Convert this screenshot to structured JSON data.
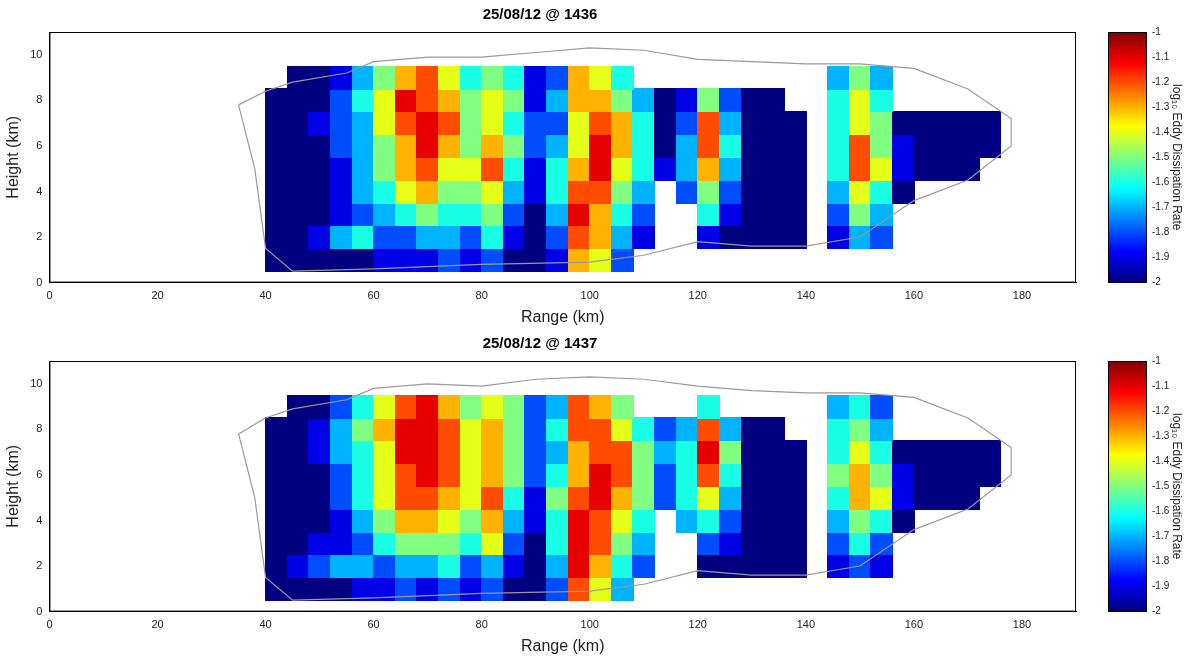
{
  "chart_data": [
    {
      "type": "heatmap",
      "title": "25/08/12 @ 1436",
      "x_label": "Range (km)",
      "y_label": "Height (km)",
      "xlim": [
        0,
        190
      ],
      "xticks": [
        0,
        20,
        40,
        60,
        80,
        100,
        120,
        140,
        160,
        180
      ],
      "ylim": [
        0,
        11
      ],
      "yticks": [
        0,
        2,
        4,
        6,
        8,
        10
      ],
      "grid": false,
      "x": [
        42,
        46,
        50,
        54,
        58,
        62,
        66,
        70,
        74,
        78,
        82,
        86,
        90,
        94,
        98,
        102,
        106,
        110,
        114,
        118,
        122,
        126,
        130,
        134,
        138,
        142,
        146,
        150,
        154,
        158,
        162,
        166,
        170,
        174
      ],
      "y": [
        1,
        2,
        3,
        4,
        5,
        6,
        7,
        8,
        9
      ],
      "cells": [
        [
          -2,
          -2,
          -2,
          -2,
          -2,
          -1.9,
          -1.9,
          -1.9,
          -1.8,
          -1.9,
          -1.8,
          -2,
          -2,
          -1.9,
          -1.3,
          -1.4,
          -1.8,
          null,
          null,
          null,
          null,
          null,
          null,
          null,
          null,
          null,
          null,
          null,
          null,
          null,
          null,
          null,
          null,
          null
        ],
        [
          -2,
          -2,
          -1.9,
          -1.7,
          -1.6,
          -1.8,
          -1.8,
          -1.7,
          -1.7,
          -1.8,
          -1.6,
          -1.9,
          -2,
          -1.8,
          -1.2,
          -1.3,
          -1.7,
          -1.9,
          null,
          null,
          -1.9,
          -2,
          -2,
          -2,
          -2,
          null,
          -1.9,
          -1.7,
          -1.8,
          null,
          null,
          null,
          null,
          null
        ],
        [
          -2,
          -2,
          -2,
          -1.9,
          -1.8,
          -1.7,
          -1.6,
          -1.5,
          -1.6,
          -1.6,
          -1.5,
          -1.8,
          -2,
          -1.7,
          -1.1,
          -1.3,
          -1.6,
          -1.8,
          null,
          null,
          -1.6,
          -1.9,
          -2,
          -2,
          -2,
          null,
          -1.8,
          -1.5,
          -1.7,
          null,
          null,
          null,
          null,
          null
        ],
        [
          -2,
          -2,
          -2,
          -1.9,
          -1.7,
          -1.6,
          -1.4,
          -1.3,
          -1.5,
          -1.5,
          -1.4,
          -1.7,
          -1.9,
          -1.6,
          -1.2,
          -1.2,
          -1.5,
          -1.7,
          null,
          -1.8,
          -1.5,
          -1.8,
          -2,
          -2,
          -2,
          null,
          -1.7,
          -1.4,
          -1.6,
          -2,
          null,
          null,
          null,
          null
        ],
        [
          -2,
          -2,
          -2,
          -1.9,
          -1.7,
          -1.5,
          -1.3,
          -1.2,
          -1.4,
          -1.4,
          -1.2,
          -1.6,
          -1.9,
          -1.6,
          -1.3,
          -1.1,
          -1.4,
          -1.6,
          -1.9,
          -1.7,
          -1.3,
          -1.7,
          -2,
          -2,
          -2,
          null,
          -1.6,
          -1.2,
          -1.4,
          -1.9,
          -2,
          -2,
          -2,
          null
        ],
        [
          -2,
          -2,
          -2,
          -1.8,
          -1.7,
          -1.5,
          -1.3,
          -1.1,
          -1.3,
          -1.5,
          -1.3,
          -1.5,
          -1.8,
          -1.7,
          -1.4,
          -1.1,
          -1.3,
          -1.6,
          -2,
          -1.7,
          -1.2,
          -1.6,
          -2,
          -2,
          -2,
          null,
          -1.6,
          -1.2,
          -1.5,
          -1.9,
          -2,
          -2,
          -2,
          -2
        ],
        [
          -2,
          -2,
          -1.9,
          -1.8,
          -1.7,
          -1.4,
          -1.2,
          -1.1,
          -1.2,
          -1.5,
          -1.4,
          -1.6,
          -1.8,
          -1.8,
          -1.4,
          -1.2,
          -1.3,
          -1.6,
          -2,
          -1.8,
          -1.2,
          -1.7,
          -2,
          -2,
          -2,
          null,
          -1.6,
          -1.4,
          -1.5,
          -2,
          -2,
          -2,
          -2,
          -2
        ],
        [
          -2,
          -2,
          -2,
          -1.8,
          -1.6,
          -1.4,
          -1.1,
          -1.2,
          -1.3,
          -1.5,
          -1.4,
          -1.5,
          -1.9,
          -1.7,
          -1.3,
          -1.3,
          -1.5,
          -1.7,
          -2,
          -1.9,
          -1.5,
          -1.8,
          -2,
          -2,
          null,
          null,
          -1.6,
          -1.4,
          -1.6,
          null,
          null,
          null,
          null,
          null
        ],
        [
          null,
          -2,
          -2,
          -1.9,
          -1.7,
          -1.5,
          -1.3,
          -1.2,
          -1.4,
          -1.6,
          -1.5,
          -1.6,
          -1.9,
          -1.8,
          -1.3,
          -1.4,
          -1.6,
          null,
          null,
          null,
          null,
          null,
          null,
          null,
          null,
          null,
          -1.7,
          -1.5,
          -1.7,
          null,
          null,
          null,
          null,
          null
        ]
      ],
      "outline": {
        "x": [
          35,
          40,
          45,
          55,
          60,
          70,
          80,
          90,
          100,
          110,
          120,
          130,
          140,
          150,
          160,
          170,
          178,
          178,
          170,
          160,
          150,
          140,
          130,
          120,
          110,
          100,
          80,
          60,
          45,
          40,
          38,
          35
        ],
        "y": [
          7.8,
          8.4,
          8.8,
          9.2,
          9.7,
          9.9,
          9.9,
          10.1,
          10.3,
          10.2,
          9.8,
          9.7,
          9.6,
          9.6,
          9.4,
          8.5,
          7.2,
          6,
          4.5,
          3.6,
          2,
          1.6,
          1.6,
          1.8,
          1.2,
          0.9,
          0.8,
          0.6,
          0.5,
          1.5,
          5,
          7.8
        ]
      },
      "colorbar": {
        "label": "log₁₀ Eddy Dissipation Rate",
        "range": [
          -2,
          -1
        ],
        "ticks": [
          -1,
          -1.1,
          -1.2,
          -1.3,
          -1.4,
          -1.5,
          -1.6,
          -1.7,
          -1.8,
          -1.9,
          -2
        ]
      }
    },
    {
      "type": "heatmap",
      "title": "25/08/12 @ 1437",
      "x_label": "Range (km)",
      "y_label": "Height (km)",
      "xlim": [
        0,
        190
      ],
      "xticks": [
        0,
        20,
        40,
        60,
        80,
        100,
        120,
        140,
        160,
        180
      ],
      "ylim": [
        0,
        11
      ],
      "yticks": [
        0,
        2,
        4,
        6,
        8,
        10
      ],
      "grid": false,
      "x": [
        42,
        46,
        50,
        54,
        58,
        62,
        66,
        70,
        74,
        78,
        82,
        86,
        90,
        94,
        98,
        102,
        106,
        110,
        114,
        118,
        122,
        126,
        130,
        134,
        138,
        142,
        146,
        150,
        154,
        158,
        162,
        166,
        170,
        174
      ],
      "y": [
        1,
        2,
        3,
        4,
        5,
        6,
        7,
        8,
        9
      ],
      "cells": [
        [
          -2,
          -2,
          -2,
          -2,
          -1.9,
          -1.9,
          -1.8,
          -1.9,
          -1.8,
          -1.9,
          -1.8,
          -2,
          -2,
          -1.8,
          -1.2,
          -1.4,
          -1.7,
          null,
          null,
          null,
          null,
          null,
          null,
          null,
          null,
          null,
          null,
          null,
          null,
          null,
          null,
          null,
          null,
          null
        ],
        [
          -2,
          -1.9,
          -1.8,
          -1.7,
          -1.7,
          -1.8,
          -1.7,
          -1.7,
          -1.6,
          -1.8,
          -1.7,
          -1.9,
          -2,
          -1.7,
          -1.1,
          -1.3,
          -1.6,
          -1.8,
          null,
          null,
          -2,
          -2,
          -2,
          -2,
          -2,
          null,
          -1.9,
          -1.8,
          -1.9,
          null,
          null,
          null,
          null,
          null
        ],
        [
          -2,
          -2,
          -1.9,
          -1.9,
          -1.8,
          -1.6,
          -1.5,
          -1.5,
          -1.5,
          -1.6,
          -1.4,
          -1.8,
          -2,
          -1.6,
          -1.1,
          -1.2,
          -1.5,
          -1.7,
          null,
          null,
          -1.8,
          -1.9,
          -2,
          -2,
          -2,
          null,
          -1.8,
          -1.6,
          -1.8,
          null,
          null,
          null,
          null,
          null
        ],
        [
          -2,
          -2,
          -2,
          -1.9,
          -1.7,
          -1.5,
          -1.3,
          -1.3,
          -1.4,
          -1.5,
          -1.3,
          -1.7,
          -1.9,
          -1.6,
          -1.1,
          -1.2,
          -1.4,
          -1.6,
          null,
          -1.7,
          -1.6,
          -1.8,
          -2,
          -2,
          -2,
          null,
          -1.7,
          -1.5,
          -1.6,
          -2,
          null,
          null,
          null,
          null
        ],
        [
          -2,
          -2,
          -2,
          -1.8,
          -1.6,
          -1.4,
          -1.2,
          -1.2,
          -1.3,
          -1.4,
          -1.2,
          -1.6,
          -1.9,
          -1.5,
          -1.2,
          -1.1,
          -1.3,
          -1.5,
          -1.8,
          -1.6,
          -1.4,
          -1.7,
          -2,
          -2,
          -2,
          null,
          -1.6,
          -1.3,
          -1.4,
          -1.9,
          -2,
          -2,
          -2,
          null
        ],
        [
          -2,
          -2,
          -2,
          -1.8,
          -1.6,
          -1.4,
          -1.2,
          -1.1,
          -1.2,
          -1.4,
          -1.3,
          -1.5,
          -1.8,
          -1.6,
          -1.3,
          -1.1,
          -1.2,
          -1.5,
          -1.8,
          -1.6,
          -1.2,
          -1.6,
          -2,
          -2,
          -2,
          null,
          -1.5,
          -1.3,
          -1.5,
          -1.9,
          -2,
          -2,
          -2,
          -2
        ],
        [
          -2,
          -2,
          -1.9,
          -1.7,
          -1.6,
          -1.4,
          -1.1,
          -1.1,
          -1.2,
          -1.4,
          -1.3,
          -1.5,
          -1.8,
          -1.7,
          -1.3,
          -1.2,
          -1.2,
          -1.5,
          -1.7,
          -1.6,
          -1.1,
          -1.5,
          -2,
          -2,
          -2,
          null,
          -1.6,
          -1.4,
          -1.6,
          -2,
          -2,
          -2,
          -2,
          -2
        ],
        [
          -2,
          -2,
          -1.9,
          -1.7,
          -1.5,
          -1.3,
          -1.1,
          -1.1,
          -1.2,
          -1.4,
          -1.3,
          -1.5,
          -1.8,
          -1.6,
          -1.2,
          -1.2,
          -1.4,
          -1.6,
          -1.8,
          -1.7,
          -1.2,
          -1.7,
          -2,
          -2,
          null,
          null,
          -1.6,
          -1.5,
          -1.7,
          null,
          null,
          null,
          null,
          null
        ],
        [
          null,
          -2,
          -2,
          -1.8,
          -1.6,
          -1.4,
          -1.2,
          -1.1,
          -1.3,
          -1.5,
          -1.4,
          -1.5,
          -1.8,
          -1.7,
          -1.2,
          -1.3,
          -1.5,
          null,
          null,
          null,
          -1.6,
          null,
          null,
          null,
          null,
          null,
          -1.7,
          -1.6,
          -1.8,
          null,
          null,
          null,
          null,
          null
        ]
      ],
      "outline": {
        "x": [
          35,
          40,
          45,
          55,
          60,
          70,
          80,
          90,
          100,
          110,
          120,
          130,
          140,
          150,
          160,
          170,
          178,
          178,
          170,
          160,
          150,
          140,
          130,
          120,
          110,
          100,
          80,
          60,
          45,
          40,
          38,
          35
        ],
        "y": [
          7.8,
          8.5,
          8.9,
          9.3,
          9.8,
          10,
          9.9,
          10.2,
          10.3,
          10.2,
          9.9,
          9.7,
          9.6,
          9.6,
          9.4,
          8.5,
          7.2,
          6,
          4.5,
          3.6,
          2,
          1.6,
          1.6,
          1.8,
          1.2,
          0.9,
          0.8,
          0.6,
          0.5,
          1.5,
          5,
          7.8
        ]
      },
      "colorbar": {
        "label": "log₁₀ Eddy Dissipation Rate",
        "range": [
          -2,
          -1
        ],
        "ticks": [
          -1,
          -1.1,
          -1.2,
          -1.3,
          -1.4,
          -1.5,
          -1.6,
          -1.7,
          -1.8,
          -1.9,
          -2
        ]
      }
    }
  ]
}
